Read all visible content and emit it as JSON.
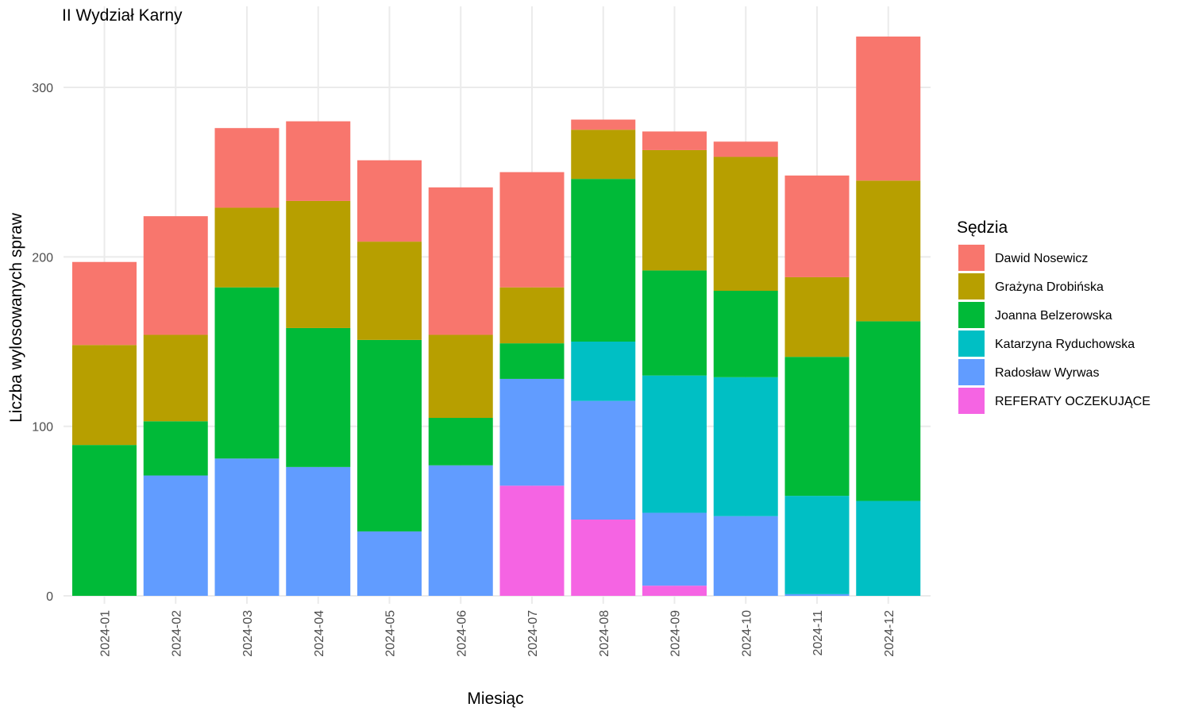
{
  "chart_data": {
    "type": "bar",
    "stacked": true,
    "title": "II Wydział Karny",
    "xlabel": "Miesiąc",
    "ylabel": "Liczba wylosowanych spraw",
    "ylim": [
      0,
      330
    ],
    "yticks": [
      0,
      100,
      200,
      300
    ],
    "grid": true,
    "legend_title": "Sędzia",
    "legend_position": "right",
    "categories": [
      "2024-01",
      "2024-02",
      "2024-03",
      "2024-04",
      "2024-05",
      "2024-06",
      "2024-07",
      "2024-08",
      "2024-09",
      "2024-10",
      "2024-11",
      "2024-12"
    ],
    "series": [
      {
        "name": "REFERATY OCZEKUJĄCE",
        "color": "#F564E3",
        "values": [
          0,
          0,
          0,
          0,
          0,
          0,
          65,
          45,
          6,
          0,
          0,
          0
        ]
      },
      {
        "name": "Radosław Wyrwas",
        "color": "#619CFF",
        "values": [
          0,
          71,
          81,
          76,
          38,
          77,
          63,
          70,
          43,
          47,
          1,
          0
        ]
      },
      {
        "name": "Katarzyna Ryduchowska",
        "color": "#00BFC4",
        "values": [
          0,
          0,
          0,
          0,
          0,
          0,
          0,
          35,
          81,
          82,
          58,
          56
        ]
      },
      {
        "name": "Joanna Belzerowska",
        "color": "#00BA38",
        "values": [
          89,
          32,
          101,
          82,
          113,
          28,
          21,
          96,
          62,
          51,
          82,
          106
        ]
      },
      {
        "name": "Grażyna Drobińska",
        "color": "#B79F00",
        "values": [
          59,
          51,
          47,
          75,
          58,
          49,
          33,
          29,
          71,
          79,
          47,
          83
        ]
      },
      {
        "name": "Dawid Nosewicz",
        "color": "#F8766D",
        "values": [
          49,
          70,
          47,
          47,
          48,
          87,
          68,
          6,
          11,
          9,
          60,
          85
        ]
      }
    ],
    "legend_order": [
      "Dawid Nosewicz",
      "Grażyna Drobińska",
      "Joanna Belzerowska",
      "Katarzyna Ryduchowska",
      "Radosław Wyrwas",
      "REFERATY OCZEKUJĄCE"
    ]
  }
}
